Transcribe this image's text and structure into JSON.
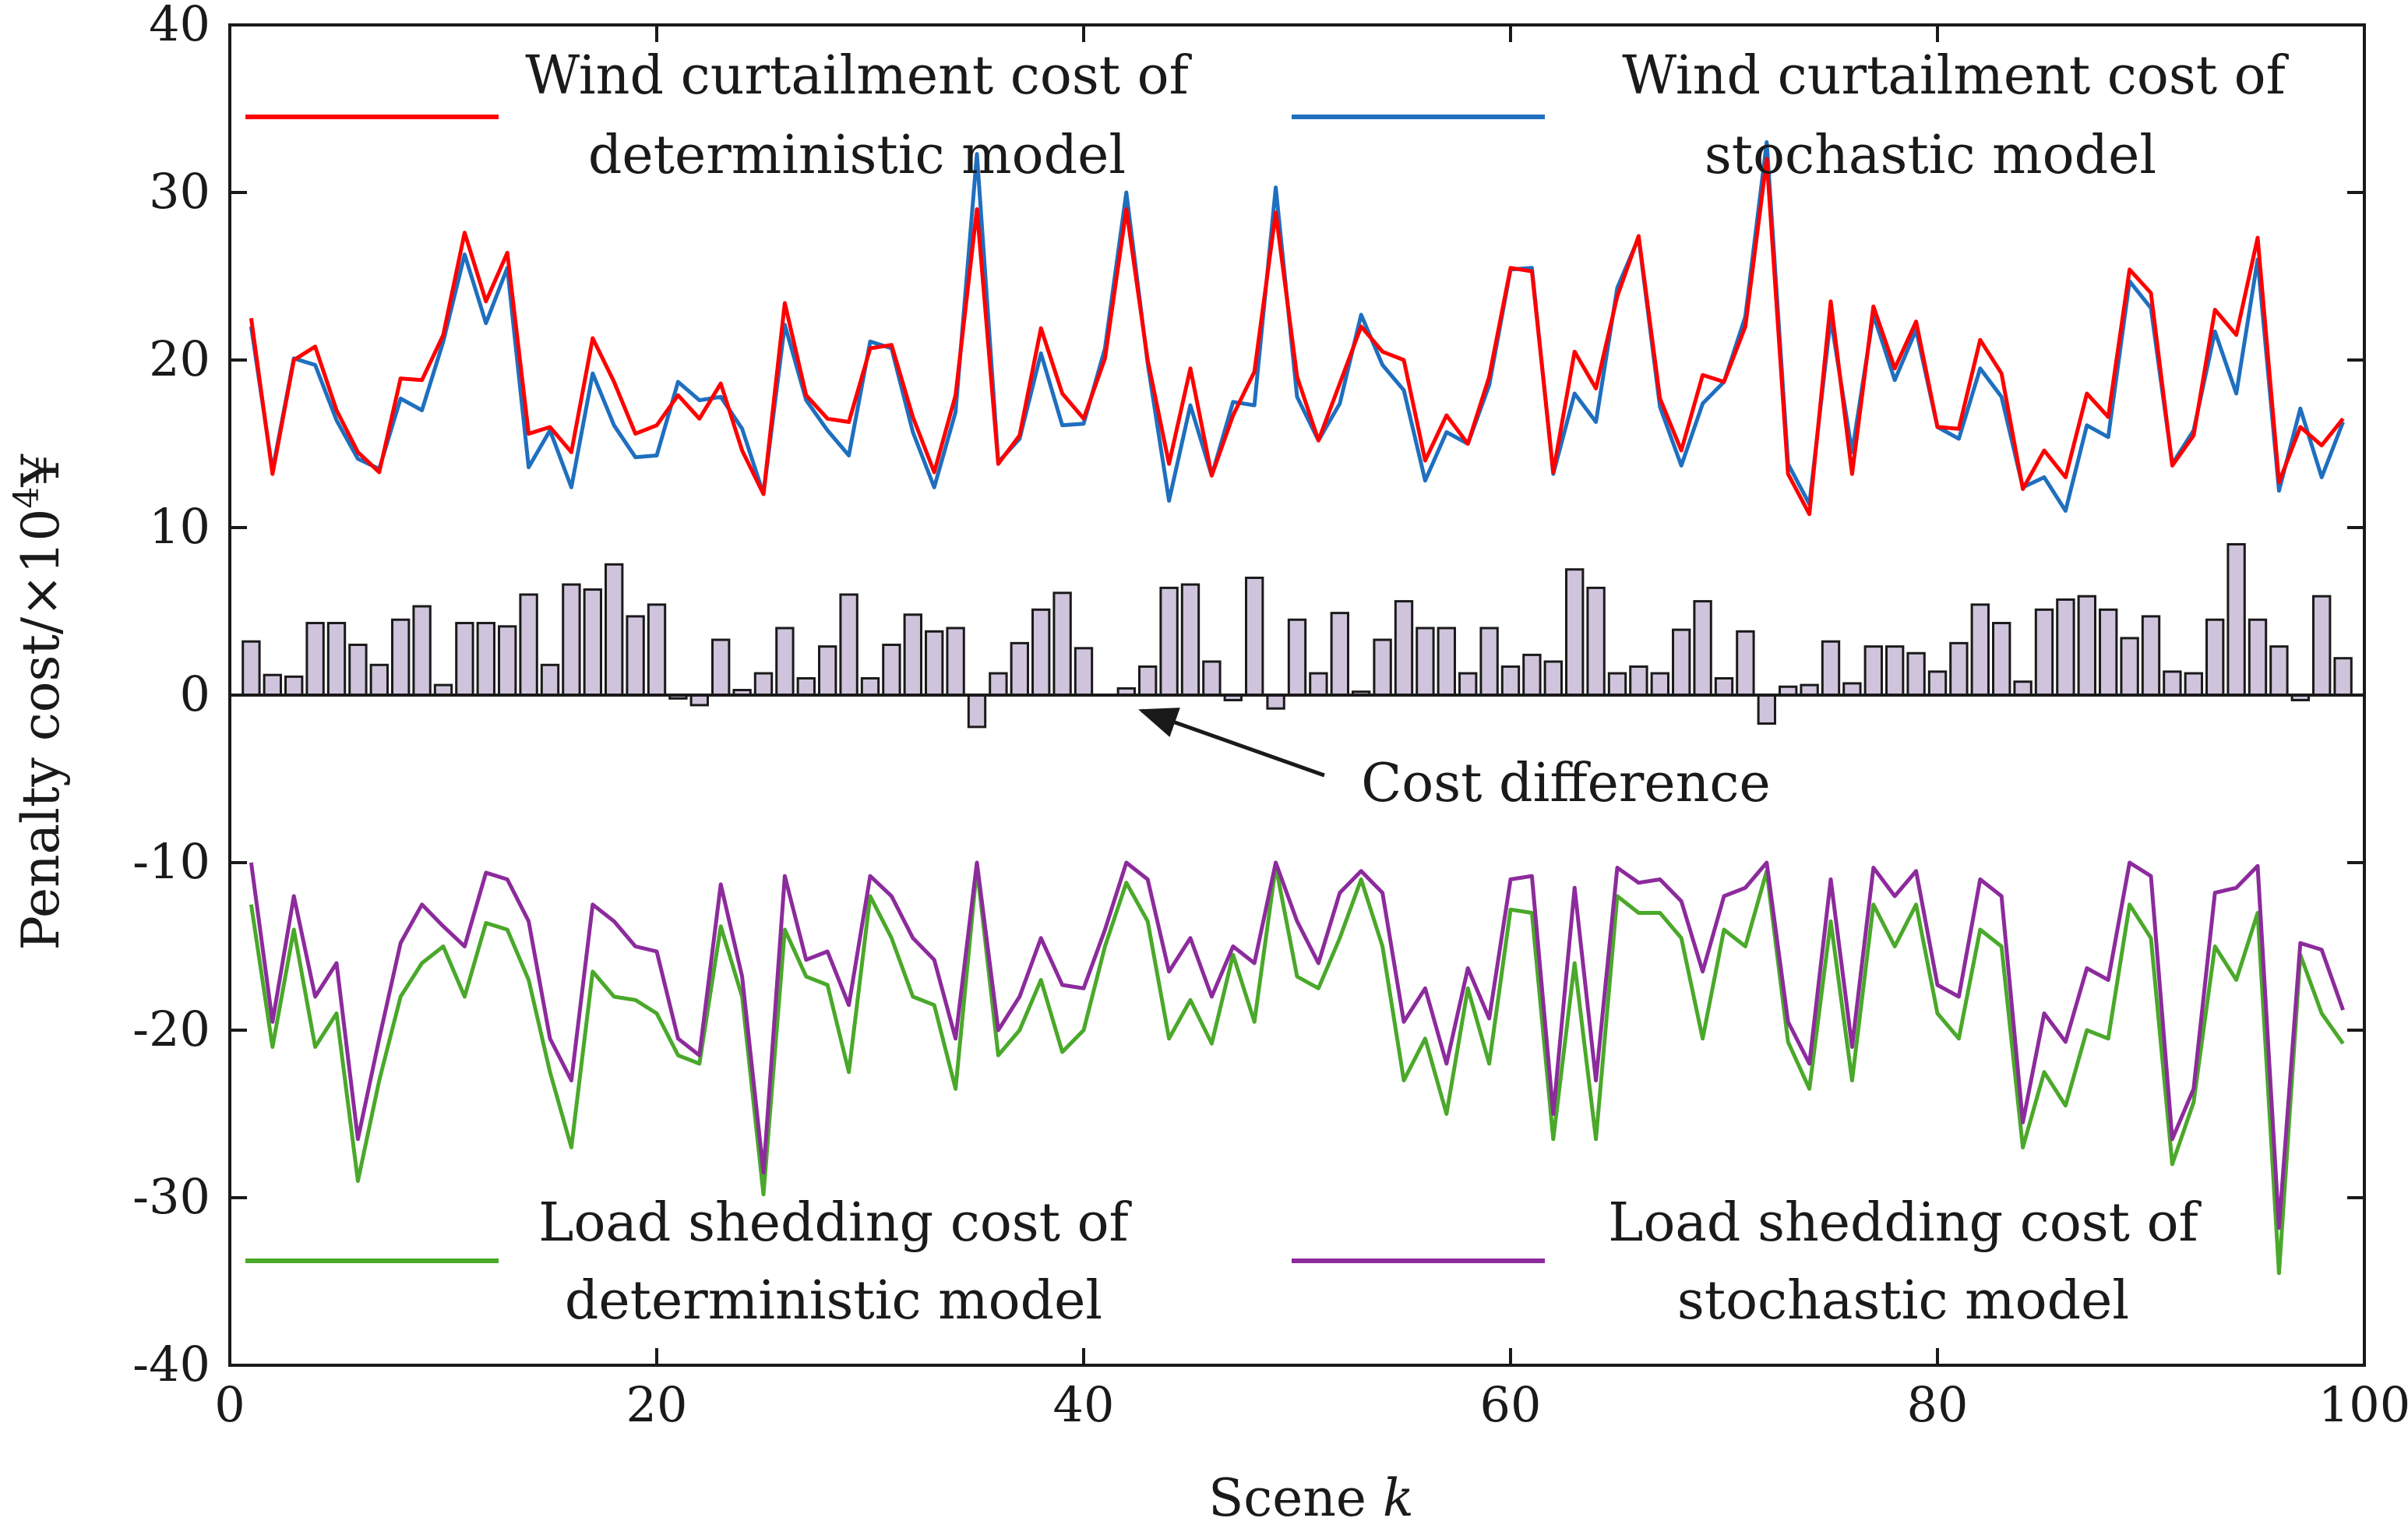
{
  "chart_data": {
    "type": "line+bar",
    "xlabel": "Scene",
    "xlabel_var": "k",
    "ylabel": "Penalty cost/×10",
    "ylabel_sup": "4",
    "ylabel_unit": "¥",
    "xlim": [
      0,
      100
    ],
    "ylim": [
      -40,
      40
    ],
    "x_ticks": [
      0,
      20,
      40,
      60,
      80,
      100
    ],
    "y_ticks": [
      -40,
      -30,
      -20,
      -10,
      0,
      10,
      20,
      30,
      40
    ],
    "grid": false,
    "x": [
      1,
      2,
      3,
      4,
      5,
      6,
      7,
      8,
      9,
      10,
      11,
      12,
      13,
      14,
      15,
      16,
      17,
      18,
      19,
      20,
      21,
      22,
      23,
      24,
      25,
      26,
      27,
      28,
      29,
      30,
      31,
      32,
      33,
      34,
      35,
      36,
      37,
      38,
      39,
      40,
      41,
      42,
      43,
      44,
      45,
      46,
      47,
      48,
      49,
      50,
      51,
      52,
      53,
      54,
      55,
      56,
      57,
      58,
      59,
      60,
      61,
      62,
      63,
      64,
      65,
      66,
      67,
      68,
      69,
      70,
      71,
      72,
      73,
      74,
      75,
      76,
      77,
      78,
      79,
      80,
      81,
      82,
      83,
      84,
      85,
      86,
      87,
      88,
      89,
      90,
      91,
      92,
      93,
      94,
      95,
      96,
      97,
      98,
      99
    ],
    "series": [
      {
        "name": "Wind curtailment cost of deterministic model",
        "legend_lines": [
          "Wind curtailment cost of",
          "deterministic model"
        ],
        "color": "#ff0000",
        "values": [
          22.5,
          13.2,
          20.0,
          20.8,
          17.0,
          14.5,
          13.3,
          18.9,
          18.8,
          21.5,
          27.6,
          23.5,
          26.4,
          15.6,
          16.0,
          14.5,
          21.3,
          18.7,
          15.6,
          16.1,
          17.9,
          16.5,
          18.6,
          14.6,
          12.0,
          23.4,
          17.9,
          16.5,
          16.3,
          20.7,
          20.9,
          16.6,
          13.3,
          17.9,
          29.0,
          13.8,
          15.5,
          21.9,
          18.0,
          16.5,
          20.1,
          29.0,
          20.0,
          13.8,
          19.5,
          13.1,
          16.7,
          19.3,
          28.8,
          19.0,
          15.2,
          18.6,
          22.0,
          20.5,
          20.0,
          14.0,
          16.7,
          15.0,
          19.0,
          25.5,
          25.3,
          13.3,
          20.5,
          18.3,
          23.8,
          27.4,
          17.7,
          14.6,
          19.1,
          18.7,
          22.0,
          32.0,
          13.2,
          10.8,
          23.5,
          13.2,
          23.2,
          19.5,
          22.3,
          16.0,
          15.9,
          21.2,
          19.2,
          12.3,
          14.6,
          13.0,
          18.0,
          16.6,
          25.4,
          24.0,
          13.7,
          15.5,
          23.0,
          21.5,
          27.3,
          12.7,
          16.0,
          14.9,
          16.5
        ]
      },
      {
        "name": "Wind curtailment cost of stochastic model",
        "legend_lines": [
          "Wind curtailment  cost of",
          "stochastic model"
        ],
        "color": "#1f6fbf",
        "values": [
          22.0,
          13.4,
          20.1,
          19.7,
          16.4,
          14.1,
          13.5,
          17.7,
          17.0,
          21.1,
          26.3,
          22.2,
          25.5,
          13.6,
          15.8,
          12.4,
          19.2,
          16.1,
          14.2,
          14.3,
          18.7,
          17.6,
          17.8,
          15.9,
          12.0,
          22.1,
          17.6,
          15.8,
          14.3,
          21.1,
          20.7,
          15.7,
          12.4,
          16.9,
          32.3,
          13.9,
          15.3,
          20.4,
          16.1,
          16.2,
          20.7,
          30.0,
          19.8,
          11.6,
          17.3,
          13.1,
          17.5,
          17.3,
          30.3,
          17.8,
          15.2,
          17.4,
          22.7,
          19.7,
          18.2,
          12.8,
          15.7,
          15.0,
          18.5,
          25.4,
          25.5,
          13.2,
          18.0,
          16.3,
          24.3,
          27.3,
          17.2,
          13.7,
          17.4,
          18.7,
          22.6,
          33.0,
          13.8,
          11.4,
          22.5,
          14.5,
          22.7,
          18.8,
          21.8,
          16.0,
          15.3,
          19.5,
          17.8,
          12.4,
          13.0,
          11.0,
          16.1,
          15.4,
          24.7,
          23.1,
          13.8,
          15.8,
          21.7,
          18.0,
          26.0,
          12.2,
          17.1,
          13.0,
          16.3
        ]
      },
      {
        "name": "Load shedding cost of deterministic model",
        "legend_lines": [
          "Load shedding cost of",
          "deterministic model"
        ],
        "color": "#4aa82a",
        "values": [
          -12.5,
          -21.0,
          -14.0,
          -21.0,
          -19.0,
          -29.0,
          -23.0,
          -18.0,
          -16.0,
          -15.0,
          -18.0,
          -13.6,
          -14.0,
          -17.0,
          -22.5,
          -27.0,
          -16.5,
          -18.0,
          -18.2,
          -19.0,
          -21.5,
          -22.0,
          -13.8,
          -18.0,
          -29.8,
          -14.0,
          -16.8,
          -17.3,
          -22.5,
          -12.0,
          -14.5,
          -18.0,
          -18.5,
          -23.5,
          -10.3,
          -21.5,
          -20.0,
          -17.0,
          -21.3,
          -20.0,
          -15.0,
          -11.2,
          -13.5,
          -20.5,
          -18.2,
          -20.8,
          -15.5,
          -19.5,
          -10.2,
          -16.8,
          -17.5,
          -14.5,
          -11.0,
          -15.0,
          -23.0,
          -20.5,
          -25.0,
          -17.5,
          -22.0,
          -12.8,
          -13.0,
          -26.5,
          -16.0,
          -26.5,
          -12.0,
          -13.0,
          -13.0,
          -14.5,
          -20.5,
          -14.0,
          -15.0,
          -10.5,
          -20.7,
          -23.5,
          -13.5,
          -23.0,
          -12.5,
          -15.0,
          -12.5,
          -19.0,
          -20.5,
          -14.0,
          -15.0,
          -27.0,
          -22.5,
          -24.5,
          -20.0,
          -20.5,
          -12.5,
          -14.5,
          -28.0,
          -24.3,
          -15.0,
          -17.0,
          -13.0,
          -34.5,
          -15.5,
          -19.0,
          -20.8
        ]
      },
      {
        "name": "Load shedding cost of stochastic model",
        "legend_lines": [
          "Load shedding cost of",
          "stochastic model"
        ],
        "color": "#8c2b9c",
        "values": [
          -10.0,
          -19.5,
          -12.0,
          -18.0,
          -16.0,
          -26.5,
          -20.5,
          -14.8,
          -12.5,
          -13.8,
          -15.0,
          -10.6,
          -11.0,
          -13.5,
          -20.5,
          -23.0,
          -12.5,
          -13.5,
          -15.0,
          -15.3,
          -20.5,
          -21.5,
          -11.3,
          -16.8,
          -28.5,
          -10.8,
          -15.8,
          -15.3,
          -18.5,
          -10.8,
          -12.0,
          -14.5,
          -15.8,
          -20.5,
          -10.0,
          -20.0,
          -18.0,
          -14.5,
          -17.3,
          -17.5,
          -14.0,
          -10.0,
          -11.0,
          -16.5,
          -14.5,
          -18.0,
          -15.0,
          -16.0,
          -10.0,
          -13.5,
          -16.0,
          -11.8,
          -10.5,
          -11.8,
          -19.5,
          -17.5,
          -22.0,
          -16.3,
          -19.3,
          -11.0,
          -10.8,
          -25.0,
          -11.5,
          -23.0,
          -10.3,
          -11.2,
          -11.0,
          -12.3,
          -16.5,
          -12.0,
          -11.5,
          -10.0,
          -19.5,
          -22.0,
          -11.0,
          -21.0,
          -10.3,
          -12.0,
          -10.5,
          -17.3,
          -18.0,
          -11.0,
          -12.0,
          -25.5,
          -19.0,
          -20.7,
          -16.3,
          -17.0,
          -10.0,
          -10.8,
          -26.5,
          -23.5,
          -11.8,
          -11.5,
          -10.2,
          -31.8,
          -14.8,
          -15.2,
          -18.8
        ]
      }
    ],
    "bars": {
      "name": "Cost difference",
      "color": "#cfc4dc",
      "edge_color": "#1a1a1a",
      "values": [
        3.2,
        1.2,
        1.1,
        4.3,
        4.3,
        3.0,
        1.8,
        4.5,
        5.3,
        0.6,
        4.3,
        4.3,
        4.1,
        6.0,
        1.8,
        6.6,
        6.3,
        7.8,
        4.7,
        5.4,
        -0.2,
        -0.6,
        3.3,
        0.3,
        1.3,
        4.0,
        1.0,
        2.9,
        6.0,
        1.0,
        3.0,
        4.8,
        3.8,
        4.0,
        -1.9,
        1.3,
        3.1,
        5.1,
        6.1,
        2.8,
        0.0,
        0.4,
        1.7,
        6.4,
        6.6,
        2.0,
        -0.3,
        7.0,
        -0.8,
        4.5,
        1.3,
        4.9,
        0.2,
        3.3,
        5.6,
        4.0,
        4.0,
        1.3,
        4.0,
        1.7,
        2.4,
        2.0,
        7.5,
        6.4,
        1.3,
        1.7,
        1.3,
        3.9,
        5.6,
        1.0,
        3.8,
        -1.7,
        0.5,
        0.6,
        3.2,
        0.7,
        2.9,
        2.9,
        2.5,
        1.4,
        3.1,
        5.4,
        4.3,
        0.8,
        5.1,
        5.7,
        5.9,
        5.1,
        3.4,
        4.7,
        1.4,
        1.3,
        4.5,
        9.0,
        4.5,
        2.9,
        -0.3,
        5.9,
        2.2
      ]
    },
    "annotation": {
      "text": "Cost difference",
      "arrow_target": [
        42,
        0
      ]
    }
  }
}
